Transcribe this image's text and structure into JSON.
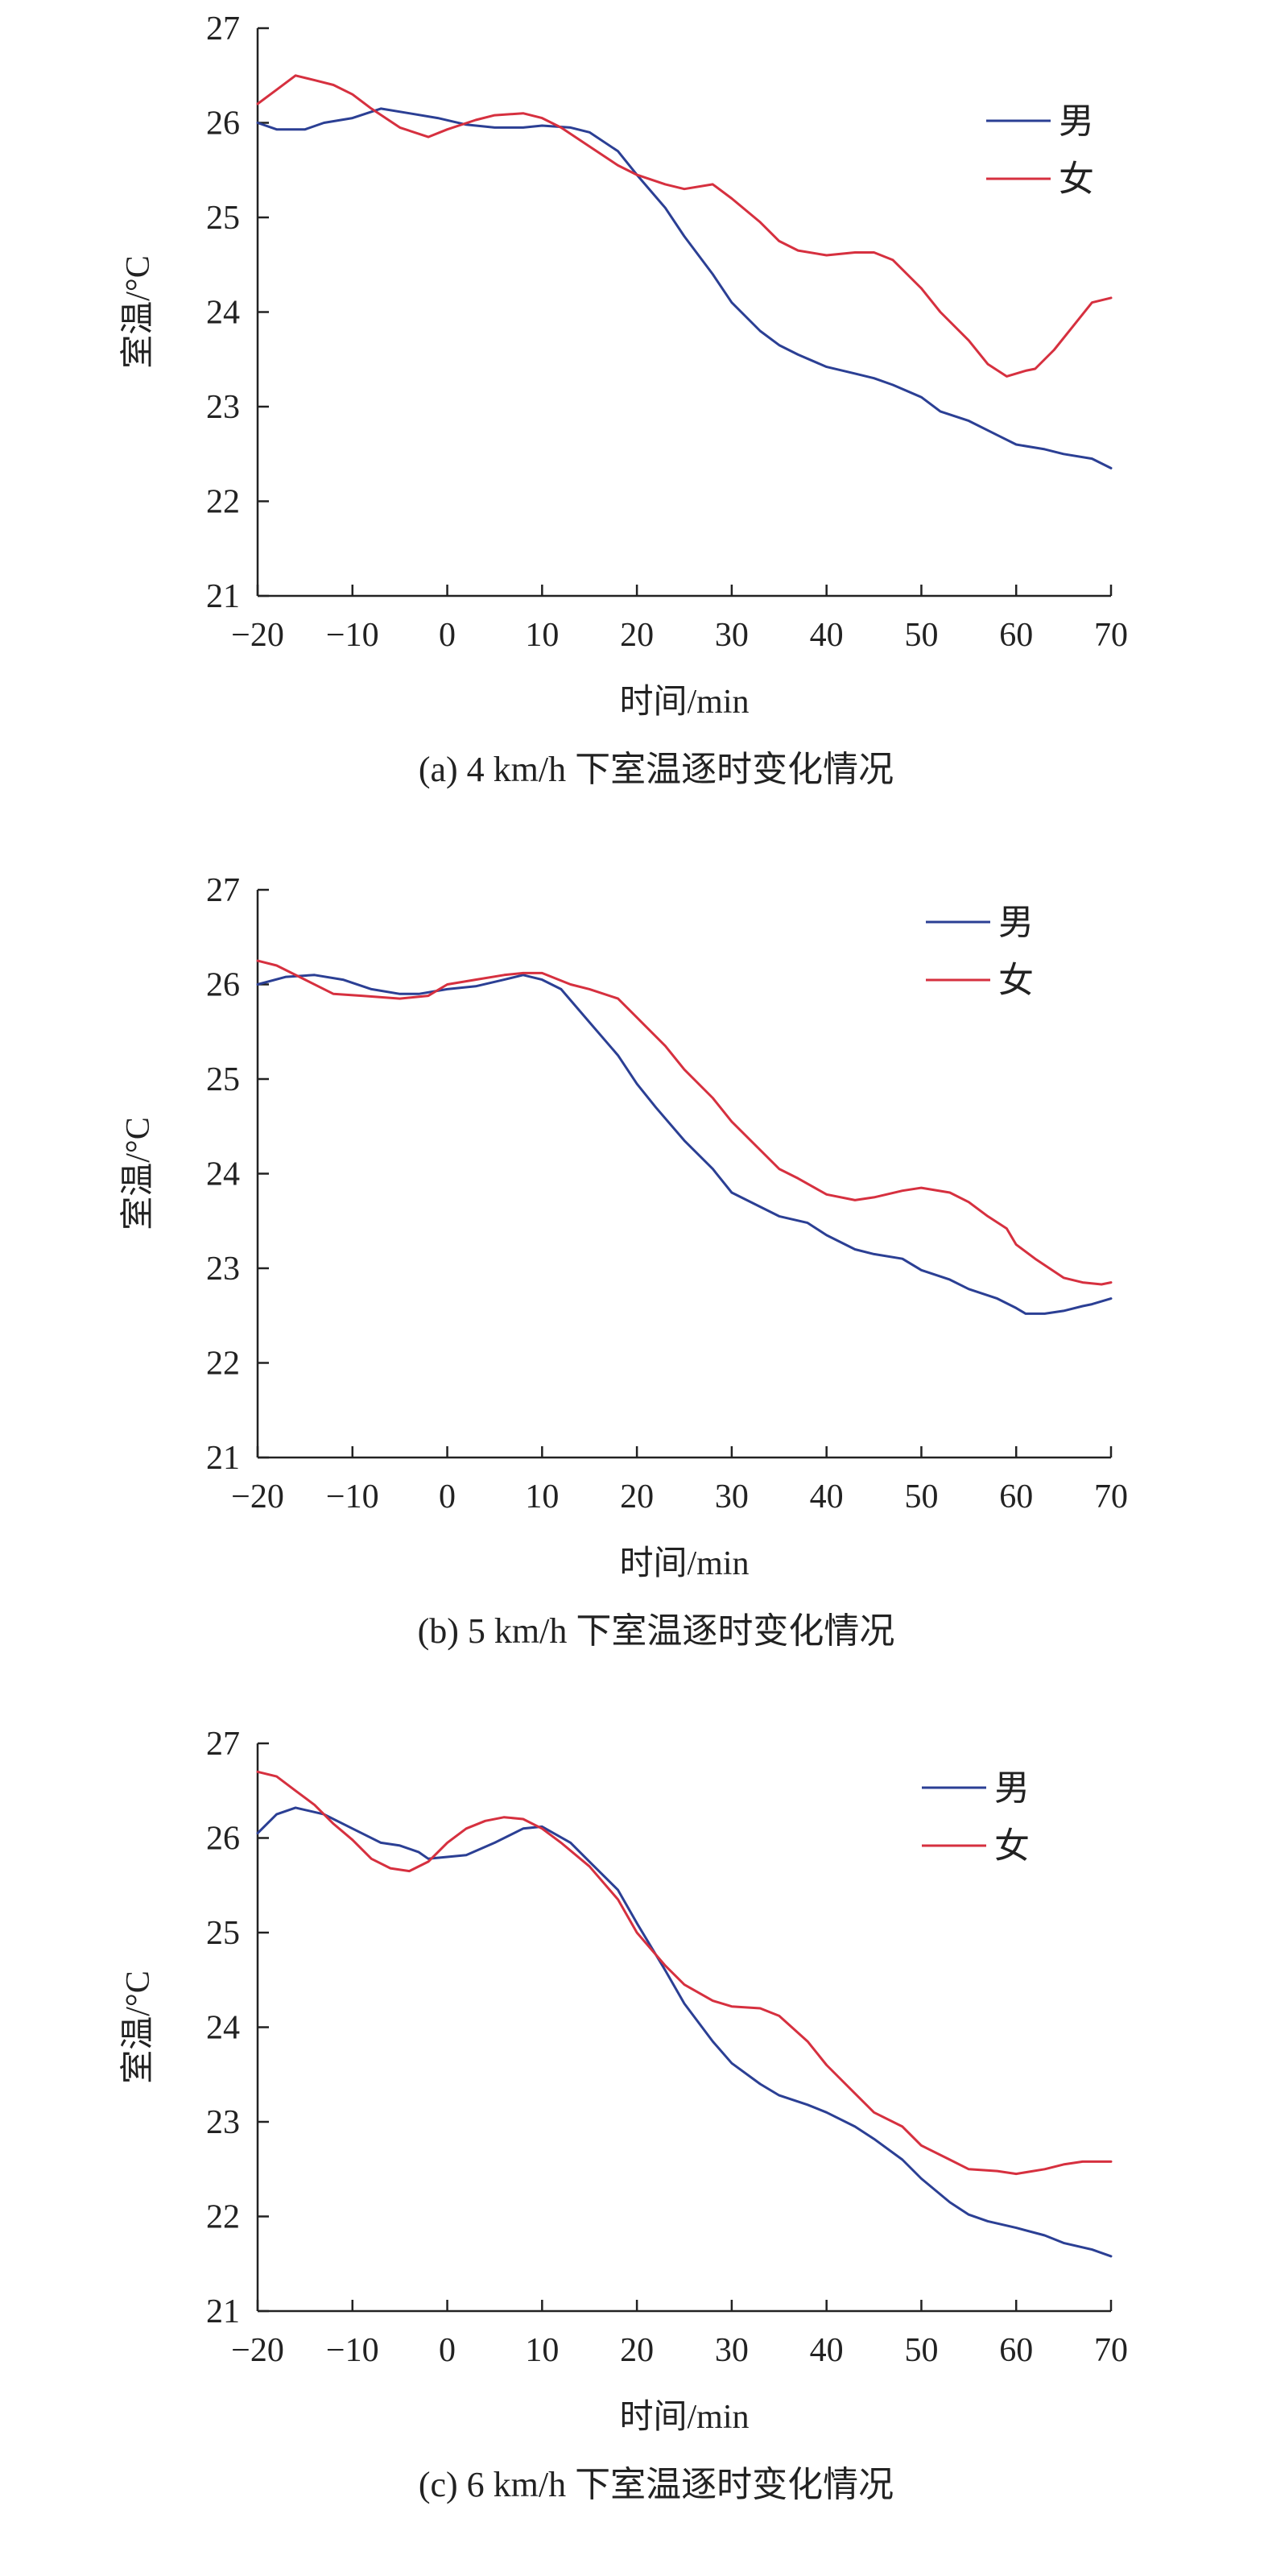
{
  "colors": {
    "male": "#2b3f94",
    "female": "#d6303f",
    "axis": "#222222"
  },
  "chart_data": [
    {
      "type": "line",
      "title": "(a) 4 km/h 下室温逐时变化情况",
      "xlabel": "时间/min",
      "ylabel": "室温/°C",
      "xlim": [
        -20,
        70
      ],
      "ylim": [
        21,
        27
      ],
      "x_ticks": [
        "−20",
        "−10",
        "0",
        "10",
        "20",
        "30",
        "40",
        "50",
        "60",
        "70"
      ],
      "y_ticks": [
        "21",
        "22",
        "23",
        "24",
        "25",
        "26",
        "27"
      ],
      "legend": [
        "男",
        "女"
      ],
      "legend_position": "top-right",
      "series": [
        {
          "name": "男",
          "x": [
            -20,
            -18,
            -15,
            -13,
            -10,
            -7,
            -4,
            -1,
            2,
            5,
            8,
            10,
            13,
            15,
            18,
            20,
            23,
            25,
            28,
            30,
            33,
            35,
            37,
            40,
            43,
            45,
            47,
            50,
            52,
            55,
            58,
            60,
            63,
            65,
            68,
            70
          ],
          "values": [
            26.0,
            25.93,
            25.93,
            26.0,
            26.05,
            26.15,
            26.1,
            26.05,
            25.98,
            25.95,
            25.95,
            25.97,
            25.95,
            25.9,
            25.7,
            25.45,
            25.1,
            24.8,
            24.4,
            24.1,
            23.8,
            23.65,
            23.55,
            23.42,
            23.35,
            23.3,
            23.23,
            23.1,
            22.95,
            22.85,
            22.7,
            22.6,
            22.55,
            22.5,
            22.45,
            22.35
          ]
        },
        {
          "name": "女",
          "x": [
            -20,
            -18,
            -16,
            -14,
            -12,
            -10,
            -8,
            -5,
            -2,
            0,
            3,
            5,
            8,
            10,
            12,
            15,
            18,
            20,
            23,
            25,
            28,
            30,
            33,
            35,
            37,
            40,
            43,
            45,
            47,
            50,
            52,
            55,
            57,
            59,
            60,
            61,
            62,
            64,
            66,
            68,
            70
          ],
          "values": [
            26.2,
            26.35,
            26.5,
            26.45,
            26.4,
            26.3,
            26.15,
            25.95,
            25.85,
            25.93,
            26.03,
            26.08,
            26.1,
            26.05,
            25.95,
            25.75,
            25.55,
            25.45,
            25.35,
            25.3,
            25.35,
            25.2,
            24.95,
            24.75,
            24.65,
            24.6,
            24.63,
            24.63,
            24.55,
            24.25,
            24.0,
            23.7,
            23.45,
            23.32,
            23.35,
            23.38,
            23.4,
            23.6,
            23.85,
            24.1,
            24.15
          ]
        }
      ]
    },
    {
      "type": "line",
      "title": "(b) 5 km/h 下室温逐时变化情况",
      "xlabel": "时间/min",
      "ylabel": "室温/°C",
      "xlim": [
        -20,
        70
      ],
      "ylim": [
        21,
        27
      ],
      "x_ticks": [
        "−20",
        "−10",
        "0",
        "10",
        "20",
        "30",
        "40",
        "50",
        "60",
        "70"
      ],
      "y_ticks": [
        "21",
        "22",
        "23",
        "24",
        "25",
        "26",
        "27"
      ],
      "legend": [
        "男",
        "女"
      ],
      "legend_position": "top-right",
      "series": [
        {
          "name": "男",
          "x": [
            -20,
            -17,
            -14,
            -11,
            -8,
            -5,
            -3,
            0,
            3,
            6,
            8,
            10,
            12,
            15,
            18,
            20,
            22,
            25,
            28,
            30,
            33,
            35,
            38,
            40,
            43,
            45,
            48,
            50,
            53,
            55,
            58,
            60,
            61,
            63,
            65,
            67,
            68,
            70
          ],
          "values": [
            26.0,
            26.08,
            26.1,
            26.05,
            25.95,
            25.9,
            25.9,
            25.95,
            25.98,
            26.05,
            26.1,
            26.05,
            25.95,
            25.6,
            25.25,
            24.95,
            24.7,
            24.35,
            24.05,
            23.8,
            23.65,
            23.55,
            23.48,
            23.35,
            23.2,
            23.15,
            23.1,
            22.98,
            22.88,
            22.78,
            22.68,
            22.58,
            22.52,
            22.52,
            22.55,
            22.6,
            22.62,
            22.68
          ]
        },
        {
          "name": "女",
          "x": [
            -20,
            -18,
            -15,
            -12,
            -9,
            -5,
            -2,
            0,
            3,
            6,
            8,
            10,
            13,
            15,
            18,
            20,
            23,
            25,
            28,
            30,
            33,
            35,
            37,
            40,
            43,
            45,
            48,
            50,
            53,
            55,
            57,
            59,
            60,
            62,
            65,
            67,
            69,
            70
          ],
          "values": [
            26.25,
            26.2,
            26.05,
            25.9,
            25.88,
            25.85,
            25.88,
            26.0,
            26.05,
            26.1,
            26.12,
            26.12,
            26.0,
            25.95,
            25.85,
            25.65,
            25.35,
            25.1,
            24.8,
            24.55,
            24.25,
            24.05,
            23.95,
            23.78,
            23.72,
            23.75,
            23.82,
            23.85,
            23.8,
            23.7,
            23.55,
            23.42,
            23.25,
            23.1,
            22.9,
            22.85,
            22.83,
            22.85
          ]
        }
      ]
    },
    {
      "type": "line",
      "title": "(c) 6 km/h 下室温逐时变化情况",
      "xlabel": "时间/min",
      "ylabel": "室温/°C",
      "xlim": [
        -20,
        70
      ],
      "ylim": [
        21,
        27
      ],
      "x_ticks": [
        "−20",
        "−10",
        "0",
        "10",
        "20",
        "30",
        "40",
        "50",
        "60",
        "70"
      ],
      "y_ticks": [
        "21",
        "22",
        "23",
        "24",
        "25",
        "26",
        "27"
      ],
      "legend": [
        "男",
        "女"
      ],
      "legend_position": "top-right",
      "series": [
        {
          "name": "男",
          "x": [
            -20,
            -18,
            -16,
            -13,
            -10,
            -7,
            -5,
            -3,
            -2,
            0,
            2,
            5,
            8,
            10,
            13,
            15,
            18,
            20,
            23,
            25,
            28,
            30,
            33,
            35,
            38,
            40,
            43,
            45,
            48,
            50,
            53,
            55,
            57,
            60,
            63,
            65,
            68,
            70
          ],
          "values": [
            26.05,
            26.25,
            26.32,
            26.25,
            26.1,
            25.95,
            25.92,
            25.85,
            25.78,
            25.8,
            25.82,
            25.95,
            26.1,
            26.12,
            25.95,
            25.75,
            25.45,
            25.1,
            24.6,
            24.25,
            23.85,
            23.62,
            23.4,
            23.28,
            23.18,
            23.1,
            22.95,
            22.82,
            22.6,
            22.4,
            22.15,
            22.02,
            21.95,
            21.88,
            21.8,
            21.72,
            21.65,
            21.58
          ]
        },
        {
          "name": "女",
          "x": [
            -20,
            -18,
            -16,
            -14,
            -12,
            -10,
            -8,
            -6,
            -4,
            -2,
            0,
            2,
            4,
            6,
            8,
            10,
            12,
            15,
            18,
            20,
            23,
            25,
            28,
            30,
            33,
            35,
            38,
            40,
            43,
            45,
            48,
            50,
            53,
            55,
            58,
            60,
            63,
            65,
            67,
            70
          ],
          "values": [
            26.7,
            26.65,
            26.5,
            26.35,
            26.15,
            25.98,
            25.78,
            25.68,
            25.65,
            25.75,
            25.95,
            26.1,
            26.18,
            26.22,
            26.2,
            26.1,
            25.95,
            25.7,
            25.35,
            25.0,
            24.65,
            24.45,
            24.28,
            24.22,
            24.2,
            24.12,
            23.85,
            23.6,
            23.3,
            23.1,
            22.95,
            22.75,
            22.6,
            22.5,
            22.48,
            22.45,
            22.5,
            22.55,
            22.58,
            22.58
          ]
        }
      ]
    }
  ]
}
